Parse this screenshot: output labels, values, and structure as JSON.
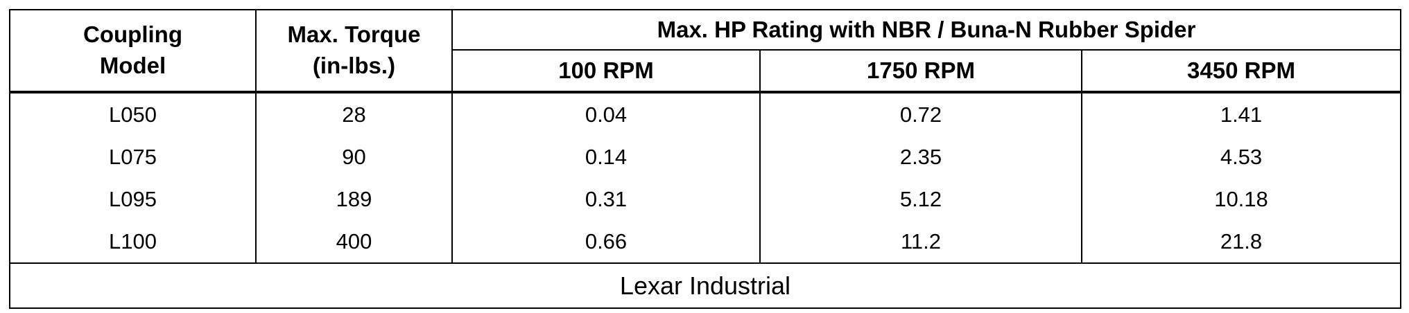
{
  "table": {
    "header": {
      "model": "Coupling\nModel",
      "torque": "Max. Torque\n(in-lbs.)",
      "group": "Max. HP Rating with NBR / Buna-N Rubber Spider",
      "rpm": [
        "100 RPM",
        "1750 RPM",
        "3450 RPM"
      ]
    },
    "rows": [
      [
        "L050",
        "28",
        "0.04",
        "0.72",
        "1.41"
      ],
      [
        "L075",
        "90",
        "0.14",
        "2.35",
        "4.53"
      ],
      [
        "L095",
        "189",
        "0.31",
        "5.12",
        "10.18"
      ],
      [
        "L100",
        "400",
        "0.66",
        "11.2",
        "21.8"
      ]
    ],
    "footer": "Lexar Industrial"
  }
}
